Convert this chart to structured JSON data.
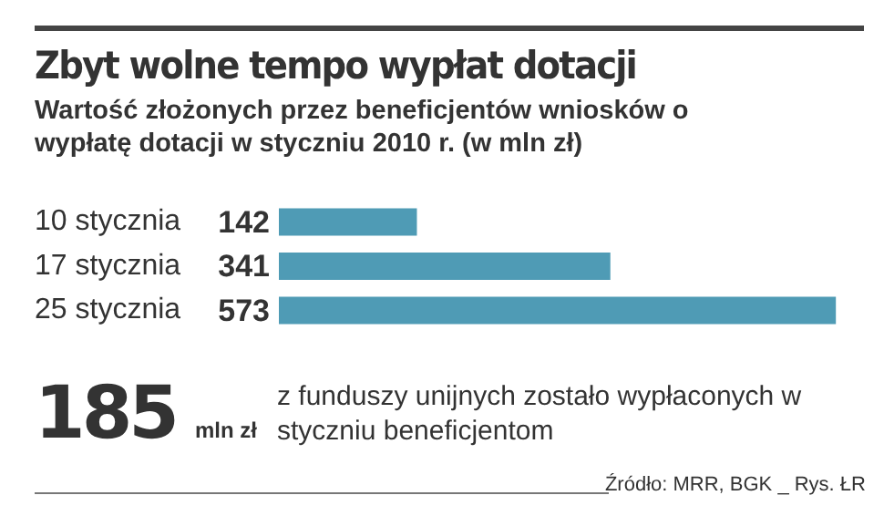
{
  "chart_data": {
    "type": "bar",
    "orientation": "horizontal",
    "title": "Zbyt wolne tempo wypłat dotacji",
    "subtitle": "Wartość złożonych przez beneficjentów wniosków o wypłatę dotacji w styczniu 2010 r. (w mln zł)",
    "categories": [
      "10 stycznia",
      "17 stycznia",
      "25 stycznia"
    ],
    "values": [
      142,
      341,
      573
    ],
    "color": "#4f9bb5",
    "data_labels": true,
    "annotations": [
      "185 mln zł",
      "z funduszy unijnych zostało wypłaconych w styczniu beneficjentom",
      "Źródło: MRR, BGK _ Rys. ŁR"
    ]
  }
}
